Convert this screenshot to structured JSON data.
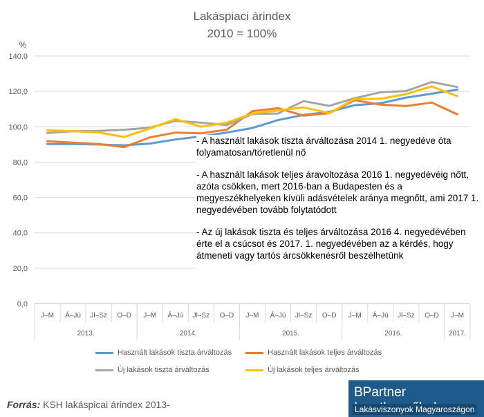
{
  "chart_data": {
    "type": "line",
    "title": "Lakáspiaci árindex",
    "subtitle": "2010 = 100%",
    "ylabel": "%",
    "ylim": [
      0,
      140
    ],
    "yticks": [
      "0,0",
      "20,0",
      "40,0",
      "60,0",
      "80,0",
      "100,0",
      "120,0",
      "140,0"
    ],
    "quarters": [
      "J–M",
      "Á–Jú",
      "Jl–Sz",
      "O–D",
      "J–M",
      "Á–Jú",
      "Jl–Sz",
      "O–D",
      "J–M",
      "Á–Jú",
      "Jl–Sz",
      "O–D",
      "J–M",
      "Á–Jú",
      "Jl–Sz",
      "O–D",
      "J–M"
    ],
    "years": [
      {
        "label": "2013.",
        "span": 4
      },
      {
        "label": "2014.",
        "span": 4
      },
      {
        "label": "2015.",
        "span": 4
      },
      {
        "label": "2016.",
        "span": 4
      },
      {
        "label": "2017.",
        "span": 1
      }
    ],
    "grid": true,
    "legend_position": "bottom",
    "series": [
      {
        "name": "Használt lakások tiszta árváltozás",
        "color": "#5b9bd5",
        "values": [
          90.2,
          90.2,
          90.0,
          89.5,
          90.5,
          92.8,
          94.5,
          96.7,
          99.3,
          103.8,
          106.7,
          108.5,
          112.2,
          113.3,
          116.5,
          118.7,
          121.0
        ]
      },
      {
        "name": "Használt lakások teljes árváltozás",
        "color": "#ed7d31",
        "values": [
          91.8,
          91.0,
          90.2,
          88.5,
          94.0,
          96.7,
          96.3,
          98.3,
          108.8,
          110.5,
          106.3,
          107.7,
          115.0,
          112.5,
          111.7,
          113.7,
          107.0
        ]
      },
      {
        "name": "Új lakások tiszta árváltozás",
        "color": "#a5a5a5",
        "values": [
          96.5,
          97.5,
          97.7,
          98.3,
          99.5,
          103.3,
          102.3,
          101.0,
          107.2,
          107.5,
          114.5,
          111.8,
          116.2,
          119.5,
          120.2,
          125.3,
          122.5
        ]
      },
      {
        "name": "Új lakások teljes árváltozás",
        "color": "#ffc000",
        "values": [
          98.0,
          97.5,
          96.8,
          94.2,
          99.0,
          104.3,
          100.0,
          102.3,
          107.5,
          109.2,
          111.0,
          107.7,
          115.7,
          115.8,
          118.5,
          122.8,
          117.3
        ]
      }
    ]
  },
  "notes": [
    "- A használt lakások tiszta árváltozása 2014 1. negyedéve óta folyamatosan/töretlenül nő",
    "- A használt lakások teljes áravoltozása 2016 1. negyedévéig nőtt, azóta csökken, mert 2016-ban a Budapesten és a megyeszékhelyeken kívüli adásvételek aránya megnőtt, ami 2017 1. negyedévében tovább folytatódott",
    "- Az új lakások tiszta és teljes árváltozása 2016 4. negyedévében érte el a csúcsot és 2017. 1. negyedévében az a kérdés, hogy átmeneti vagy tartós árcsökkenésről beszélhetünk"
  ],
  "source": {
    "label": "Forrás:",
    "text": "KSH lakáspicai árindex 2013-"
  },
  "brand": {
    "name": "BPartner Ingatlanműhely",
    "tagline": "Lakásviszonyok Magyaroszágon"
  }
}
